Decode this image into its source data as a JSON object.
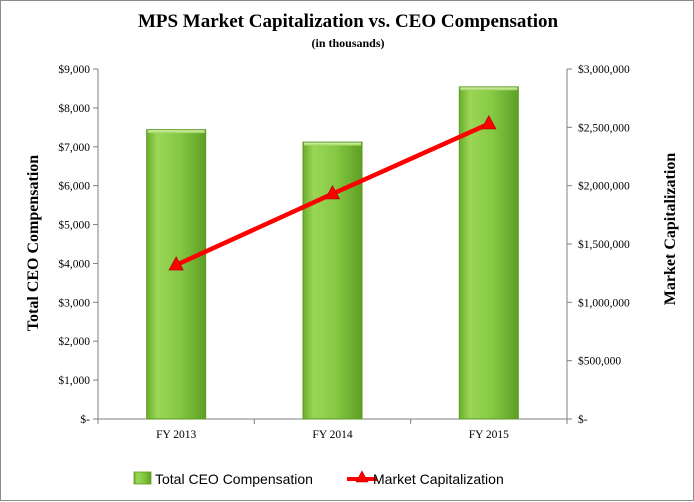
{
  "chart_data": {
    "type": "bar",
    "title": "MPS Market Capitalization vs. CEO Compensation",
    "subtitle": "(in thousands)",
    "categories": [
      "FY 2013",
      "FY 2014",
      "FY 2015"
    ],
    "series": [
      {
        "name": "Total CEO Compensation",
        "type": "bar",
        "axis": "left",
        "values": [
          7440,
          7120,
          8540
        ],
        "color": "#7cc43a"
      },
      {
        "name": "Market Capitalization",
        "type": "line",
        "axis": "right",
        "marker": "triangle",
        "values": [
          1320000,
          1930000,
          2530000
        ],
        "color": "#ff0000"
      }
    ],
    "ylabel_left": "Total CEO Compensation",
    "ylabel_right": "Market Capitalization",
    "ylim_left": [
      0,
      9000
    ],
    "ylim_right": [
      0,
      3000000
    ],
    "yticks_left": [
      "$-",
      "$1,000",
      "$2,000",
      "$3,000",
      "$4,000",
      "$5,000",
      "$6,000",
      "$7,000",
      "$8,000",
      "$9,000"
    ],
    "yticks_right": [
      "$-",
      "$500,000",
      "$1,000,000",
      "$1,500,000",
      "$2,000,000",
      "$2,500,000",
      "$3,000,000"
    ],
    "grid": false,
    "legend_position": "bottom"
  }
}
